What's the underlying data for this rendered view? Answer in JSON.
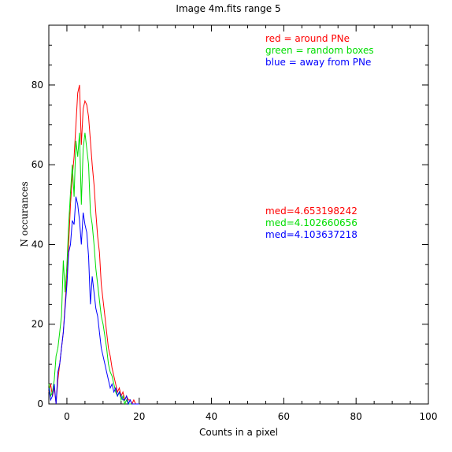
{
  "chart_data": {
    "type": "line",
    "title": "Image 4m.fits   range 5",
    "xlabel": "Counts in a pixel",
    "ylabel": "N occurances",
    "xlim": [
      -5,
      100
    ],
    "ylim": [
      0,
      95
    ],
    "x_ticks": [
      0,
      20,
      40,
      60,
      80,
      100
    ],
    "y_ticks": [
      0,
      20,
      40,
      60,
      80
    ],
    "legend": {
      "placement": "top-right",
      "entries": [
        {
          "text": "red = around PNe",
          "color": "#ff0000"
        },
        {
          "text": "green = random boxes",
          "color": "#00dd00"
        },
        {
          "text": "blue = away from PNe",
          "color": "#0000ff"
        }
      ]
    },
    "annotations": [
      {
        "text": "med=4.653198242",
        "color": "#ff0000"
      },
      {
        "text": "med=4.102660656",
        "color": "#00dd00"
      },
      {
        "text": "med=4.103637218",
        "color": "#0000ff"
      }
    ],
    "series": [
      {
        "color": "#ff0000",
        "x": [
          -5,
          -4.5,
          -4,
          -3.5,
          -3,
          -2.5,
          -2,
          -1.5,
          -1,
          -0.5,
          0,
          0.5,
          1,
          1.5,
          2,
          2.5,
          3,
          3.5,
          4,
          4.5,
          5,
          5.5,
          6,
          6.5,
          7,
          7.5,
          8,
          8.5,
          9,
          9.5,
          10,
          10.5,
          11,
          11.5,
          12,
          12.5,
          13,
          13.5,
          14,
          14.5,
          15,
          15.5,
          16,
          16.5,
          17,
          17.5,
          18,
          18.5,
          19,
          19.5,
          20
        ],
        "y": [
          3,
          5,
          2,
          4,
          0,
          6,
          10,
          14,
          18,
          25,
          32,
          40,
          50,
          57,
          62,
          70,
          78,
          80,
          65,
          74,
          76,
          75,
          72,
          66,
          60,
          55,
          48,
          42,
          38,
          30,
          26,
          22,
          18,
          14,
          12,
          9,
          7,
          5,
          3,
          4,
          2,
          3,
          1,
          2,
          1,
          1,
          0,
          1,
          0,
          0,
          0
        ]
      },
      {
        "color": "#00dd00",
        "x": [
          -5,
          -4.5,
          -4,
          -3.5,
          -3,
          -2.5,
          -2,
          -1.5,
          -1,
          -0.5,
          0,
          0.5,
          1,
          1.5,
          2,
          2.5,
          3,
          3.5,
          4,
          4.5,
          5,
          5.5,
          6,
          6.5,
          7,
          7.5,
          8,
          8.5,
          9,
          9.5,
          10,
          10.5,
          11,
          11.5,
          12,
          12.5,
          13,
          13.5,
          14,
          14.5,
          15,
          15.5,
          16,
          16.5,
          17,
          17.5,
          18,
          18.5,
          19,
          19.5,
          20
        ],
        "y": [
          5,
          2,
          3,
          6,
          12,
          14,
          18,
          22,
          36,
          28,
          35,
          45,
          53,
          60,
          52,
          66,
          62,
          68,
          50,
          64,
          68,
          64,
          60,
          48,
          45,
          40,
          34,
          30,
          26,
          22,
          20,
          17,
          14,
          10,
          8,
          7,
          5,
          3,
          2,
          3,
          1,
          2,
          0,
          1,
          0,
          0,
          0,
          0,
          0,
          0,
          0
        ]
      },
      {
        "color": "#0000ff",
        "x": [
          -5,
          -4.5,
          -4,
          -3.5,
          -3,
          -2.5,
          -2,
          -1.5,
          -1,
          -0.5,
          0,
          0.5,
          1,
          1.5,
          2,
          2.5,
          3,
          3.5,
          4,
          4.5,
          5,
          5.5,
          6,
          6.5,
          7,
          7.5,
          8,
          8.5,
          9,
          9.5,
          10,
          10.5,
          11,
          11.5,
          12,
          12.5,
          13,
          13.5,
          14,
          14.5,
          15,
          15.5,
          16,
          16.5,
          17,
          17.5,
          18,
          18.5,
          19,
          19.5,
          20
        ],
        "y": [
          4,
          1,
          2,
          5,
          0,
          8,
          10,
          14,
          18,
          24,
          30,
          38,
          40,
          46,
          45,
          52,
          50,
          46,
          40,
          48,
          45,
          43,
          37,
          25,
          32,
          28,
          24,
          22,
          18,
          14,
          12,
          10,
          8,
          6,
          4,
          5,
          3,
          4,
          2,
          3,
          2,
          1,
          1,
          2,
          0,
          1,
          0,
          0,
          0,
          0,
          0
        ]
      }
    ]
  }
}
